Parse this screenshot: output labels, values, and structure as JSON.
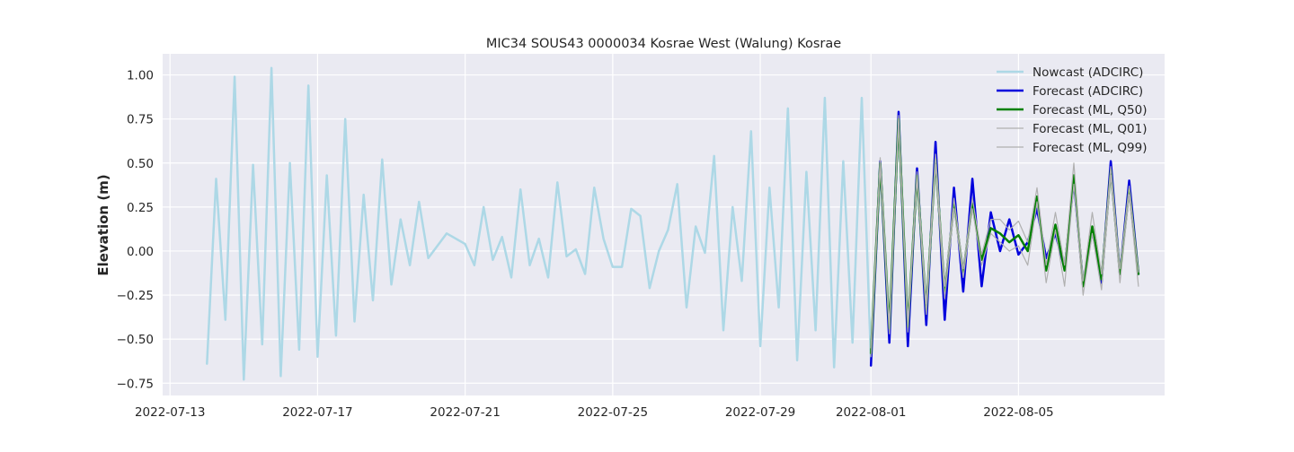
{
  "chart_data": {
    "type": "line",
    "title": "MIC34 SOUS43 0000034 Kosrae West (Walung) Kosrae",
    "xlabel": "",
    "ylabel": "Elevation (m)",
    "x_unit": "days since 2022-07-13",
    "xlim": [
      -0.2,
      26.96
    ],
    "ylim": [
      -0.82,
      1.12
    ],
    "grid": true,
    "legend_position": "top-right",
    "x_ticks": [
      {
        "value": 0,
        "label": "2022-07-13"
      },
      {
        "value": 4,
        "label": "2022-07-17"
      },
      {
        "value": 8,
        "label": "2022-07-21"
      },
      {
        "value": 12,
        "label": "2022-07-25"
      },
      {
        "value": 16,
        "label": "2022-07-29"
      },
      {
        "value": 19,
        "label": "2022-08-01"
      },
      {
        "value": 23,
        "label": "2022-08-05"
      }
    ],
    "y_ticks": [
      {
        "value": 1.0,
        "label": "1.00"
      },
      {
        "value": 0.75,
        "label": "0.75"
      },
      {
        "value": 0.5,
        "label": "0.50"
      },
      {
        "value": 0.25,
        "label": "0.25"
      },
      {
        "value": 0.0,
        "label": "0.00"
      },
      {
        "value": -0.25,
        "label": "−0.25"
      },
      {
        "value": -0.5,
        "label": "−0.50"
      },
      {
        "value": -0.75,
        "label": "−0.75"
      }
    ],
    "series": [
      {
        "name": "Nowcast (ADCIRC)",
        "color": "#add8e6",
        "width": 2.5,
        "x": [
          1.0,
          1.25,
          1.5,
          1.75,
          2.0,
          2.25,
          2.5,
          2.75,
          3.0,
          3.25,
          3.5,
          3.75,
          4.0,
          4.25,
          4.5,
          4.75,
          5.0,
          5.25,
          5.5,
          5.75,
          6.0,
          6.25,
          6.5,
          6.75,
          7.0,
          7.5,
          7.75,
          8.0,
          8.25,
          8.5,
          8.75,
          9.0,
          9.25,
          9.5,
          9.75,
          10.0,
          10.25,
          10.5,
          10.75,
          11.0,
          11.25,
          11.5,
          11.75,
          12.0,
          12.25,
          12.5,
          12.75,
          13.0,
          13.25,
          13.5,
          13.75,
          14.0,
          14.25,
          14.5,
          14.75,
          15.0,
          15.25,
          15.5,
          15.75,
          16.0,
          16.25,
          16.5,
          16.75,
          17.0,
          17.25,
          17.5,
          17.75,
          18.0,
          18.25,
          18.5,
          18.75,
          19.0
        ],
        "values": [
          -0.64,
          0.41,
          -0.39,
          0.99,
          -0.73,
          0.49,
          -0.53,
          1.04,
          -0.71,
          0.5,
          -0.56,
          0.94,
          -0.6,
          0.43,
          -0.48,
          0.75,
          -0.4,
          0.32,
          -0.28,
          0.52,
          -0.19,
          0.18,
          -0.08,
          0.28,
          -0.04,
          0.1,
          0.07,
          0.04,
          -0.08,
          0.25,
          -0.05,
          0.08,
          -0.15,
          0.35,
          -0.08,
          0.07,
          -0.15,
          0.39,
          -0.03,
          0.01,
          -0.13,
          0.36,
          0.07,
          -0.09,
          -0.09,
          0.24,
          0.2,
          -0.21,
          0.0,
          0.12,
          0.38,
          -0.32,
          0.14,
          -0.01,
          0.54,
          -0.45,
          0.25,
          -0.17,
          0.68,
          -0.54,
          0.36,
          -0.32,
          0.81,
          -0.62,
          0.45,
          -0.45,
          0.87,
          -0.66,
          0.51,
          -0.52,
          0.87,
          -0.62
        ]
      },
      {
        "name": "Forecast (ADCIRC)",
        "color": "#0000dd",
        "width": 2.5,
        "x": [
          19.0,
          19.25,
          19.5,
          19.75,
          20.0,
          20.25,
          20.5,
          20.75,
          21.0,
          21.25,
          21.5,
          21.75,
          22.0,
          22.25,
          22.5,
          22.75,
          23.0,
          23.25,
          23.5,
          23.75,
          24.0,
          24.25,
          24.5,
          24.75,
          25.0,
          25.25,
          25.5,
          25.75,
          26.0,
          26.25
        ],
        "values": [
          -0.65,
          0.51,
          -0.52,
          0.79,
          -0.54,
          0.47,
          -0.42,
          0.62,
          -0.39,
          0.36,
          -0.23,
          0.41,
          -0.2,
          0.22,
          0.0,
          0.18,
          -0.02,
          0.05,
          0.24,
          -0.04,
          0.1,
          -0.1,
          0.4,
          -0.19,
          0.12,
          -0.18,
          0.51,
          -0.13,
          0.4,
          -0.13
        ]
      },
      {
        "name": "Forecast (ML, Q50)",
        "color": "#008000",
        "width": 2.5,
        "x": [
          19.0,
          19.25,
          19.5,
          19.75,
          20.0,
          20.25,
          20.5,
          20.75,
          21.0,
          21.25,
          21.5,
          21.75,
          22.0,
          22.25,
          22.5,
          22.75,
          23.0,
          23.25,
          23.5,
          23.75,
          24.0,
          24.25,
          24.5,
          24.75,
          25.0,
          25.25,
          25.5,
          25.75,
          26.0,
          26.25
        ],
        "values": [
          -0.58,
          0.5,
          -0.44,
          0.75,
          -0.43,
          0.43,
          -0.33,
          0.52,
          -0.23,
          0.27,
          -0.12,
          0.27,
          -0.05,
          0.13,
          0.1,
          0.05,
          0.09,
          0.0,
          0.31,
          -0.11,
          0.15,
          -0.11,
          0.43,
          -0.2,
          0.14,
          -0.16,
          0.46,
          -0.13,
          0.35,
          -0.13
        ]
      },
      {
        "name": "Forecast (ML, Q01)",
        "color": "#b0b0b0",
        "width": 1.2,
        "x": [
          19.0,
          19.25,
          19.5,
          19.75,
          20.0,
          20.25,
          20.5,
          20.75,
          21.0,
          21.25,
          21.5,
          21.75,
          22.0,
          22.25,
          22.5,
          22.75,
          23.0,
          23.25,
          23.5,
          23.75,
          24.0,
          24.25,
          24.5,
          24.75,
          25.0,
          25.25,
          25.5,
          25.75,
          26.0,
          26.25
        ],
        "values": [
          -0.6,
          0.48,
          -0.47,
          0.72,
          -0.46,
          0.41,
          -0.36,
          0.49,
          -0.27,
          0.24,
          -0.15,
          0.24,
          -0.08,
          0.1,
          0.05,
          0.0,
          0.03,
          -0.08,
          0.28,
          -0.18,
          0.12,
          -0.2,
          0.38,
          -0.25,
          0.1,
          -0.22,
          0.43,
          -0.18,
          0.32,
          -0.2
        ]
      },
      {
        "name": "Forecast (ML, Q99)",
        "color": "#b0b0b0",
        "width": 1.2,
        "x": [
          19.0,
          19.25,
          19.5,
          19.75,
          20.0,
          20.25,
          20.5,
          20.75,
          21.0,
          21.25,
          21.5,
          21.75,
          22.0,
          22.25,
          22.5,
          22.75,
          23.0,
          23.25,
          23.5,
          23.75,
          24.0,
          24.25,
          24.5,
          24.75,
          25.0,
          25.25,
          25.5,
          25.75,
          26.0,
          26.25
        ],
        "values": [
          -0.55,
          0.53,
          -0.42,
          0.77,
          -0.4,
          0.45,
          -0.3,
          0.55,
          -0.2,
          0.3,
          -0.1,
          0.3,
          -0.02,
          0.18,
          0.18,
          0.12,
          0.17,
          0.05,
          0.36,
          -0.08,
          0.22,
          -0.08,
          0.5,
          -0.17,
          0.22,
          -0.13,
          0.48,
          -0.1,
          0.37,
          -0.12
        ]
      }
    ]
  }
}
